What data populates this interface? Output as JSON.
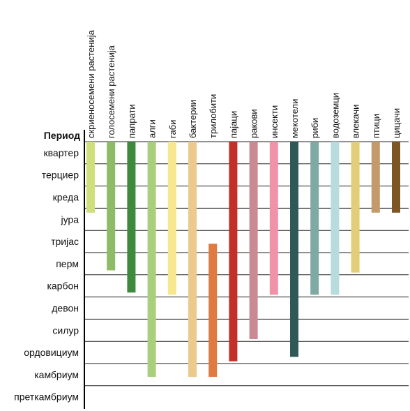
{
  "chart_data": {
    "type": "bar",
    "ylabel": "Период",
    "periods": [
      "квартер",
      "терциер",
      "креда",
      "јура",
      "тријас",
      "перм",
      "карбон",
      "девон",
      "силур",
      "ордовициум",
      "камбриум",
      "преткамбриум"
    ],
    "series": [
      {
        "name": "скриеносемени растенија",
        "color": "#cfdf7a",
        "range": [
          0,
          3.2
        ]
      },
      {
        "name": "голосемени растенија",
        "color": "#8dbb66",
        "range": [
          0,
          5.8
        ]
      },
      {
        "name": "папрати",
        "color": "#3e8a3c",
        "range": [
          0,
          6.8
        ]
      },
      {
        "name": "алги",
        "color": "#a9cf7d",
        "range": [
          0,
          10.6
        ]
      },
      {
        "name": "габи",
        "color": "#f7e88f",
        "range": [
          0,
          6.9
        ]
      },
      {
        "name": "бактерии",
        "color": "#ecc98c",
        "range": [
          0,
          10.6
        ]
      },
      {
        "name": "трилобити",
        "color": "#df7a42",
        "range": [
          4.6,
          10.6
        ]
      },
      {
        "name": "пајаци",
        "color": "#c1312a",
        "range": [
          0,
          9.9
        ]
      },
      {
        "name": "ракови",
        "color": "#c98b91",
        "range": [
          0,
          8.9
        ]
      },
      {
        "name": "инсекти",
        "color": "#f092a8",
        "range": [
          0,
          6.9
        ]
      },
      {
        "name": "мекотели",
        "color": "#2f5956",
        "range": [
          0,
          9.7
        ]
      },
      {
        "name": "риби",
        "color": "#7fa9a3",
        "range": [
          0,
          6.9
        ]
      },
      {
        "name": "водоземци",
        "color": "#b7dcdb",
        "range": [
          0,
          6.9
        ]
      },
      {
        "name": "влекачи",
        "color": "#e2cd79",
        "range": [
          0,
          5.9
        ]
      },
      {
        "name": "птици",
        "color": "#c49a6a",
        "range": [
          0,
          3.2
        ]
      },
      {
        "name": "цицачи",
        "color": "#7d5624",
        "range": [
          0,
          3.2
        ]
      }
    ]
  }
}
